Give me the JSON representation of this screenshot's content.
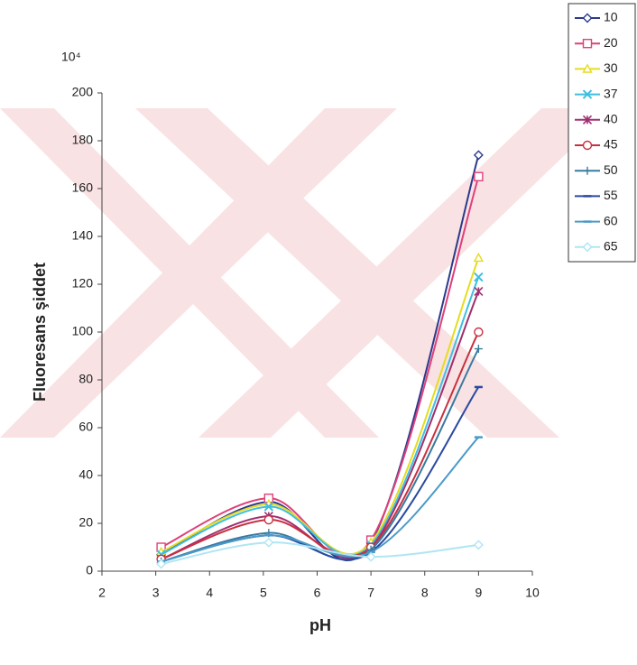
{
  "chart_data": {
    "type": "line",
    "y_unit": "10⁴",
    "x_label": "pH",
    "y_label": "Fluoresans şiddet",
    "x": [
      3.1,
      5.1,
      7,
      9
    ],
    "xlim": [
      2,
      10
    ],
    "xticks": [
      2,
      3,
      4,
      5,
      6,
      7,
      8,
      9,
      10
    ],
    "ylim": [
      0,
      200
    ],
    "yticks": [
      0,
      20,
      40,
      60,
      80,
      100,
      120,
      140,
      160,
      180,
      200
    ],
    "grid": false,
    "legend": "top-right",
    "smooth": true,
    "series": [
      {
        "name": "10",
        "color": "#2b3a8c",
        "marker": "diamond",
        "values": [
          7,
          29,
          12,
          174
        ]
      },
      {
        "name": "20",
        "color": "#e0407a",
        "marker": "square",
        "values": [
          10,
          30.5,
          13,
          165
        ]
      },
      {
        "name": "30",
        "color": "#e6dc1e",
        "marker": "triangle",
        "values": [
          8,
          28,
          12,
          131
        ]
      },
      {
        "name": "37",
        "color": "#3fbfe0",
        "marker": "x",
        "values": [
          7,
          27,
          11,
          123
        ]
      },
      {
        "name": "40",
        "color": "#a03070",
        "marker": "star",
        "values": [
          5,
          23,
          10,
          117
        ]
      },
      {
        "name": "45",
        "color": "#c83040",
        "marker": "circle",
        "values": [
          5,
          21.5,
          10,
          100
        ]
      },
      {
        "name": "50",
        "color": "#3a7aa0",
        "marker": "plus",
        "values": [
          4,
          16,
          9,
          93
        ]
      },
      {
        "name": "55",
        "color": "#2a4aa0",
        "marker": "dash",
        "values": [
          4,
          15,
          8,
          77
        ]
      },
      {
        "name": "60",
        "color": "#4a9ac8",
        "marker": "dash",
        "values": [
          4,
          15,
          8,
          56
        ]
      },
      {
        "name": "65",
        "color": "#aee6f2",
        "marker": "diamond",
        "values": [
          3,
          12,
          6,
          11
        ]
      }
    ]
  }
}
